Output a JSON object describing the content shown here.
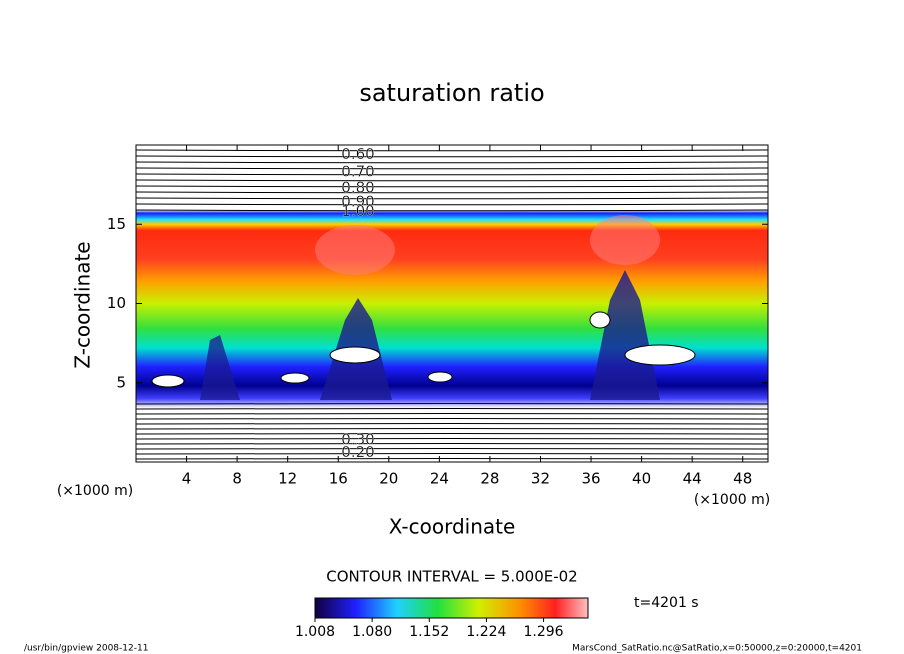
{
  "chart_data": {
    "type": "contour",
    "title": "saturation ratio",
    "xlabel": "X-coordinate",
    "ylabel": "Z-coordinate",
    "x_unit": "(×1000 m)",
    "y_unit": "(×1000 m)",
    "xlim": [
      0,
      50
    ],
    "ylim": [
      0,
      20
    ],
    "xticks": [
      4,
      8,
      12,
      16,
      20,
      24,
      28,
      32,
      36,
      40,
      44,
      48
    ],
    "yticks": [
      5,
      10,
      15
    ],
    "contour_labels": [
      {
        "value": 0.6,
        "label": "0.60",
        "z": 19.4
      },
      {
        "value": 0.7,
        "label": "0.70",
        "z": 18.3
      },
      {
        "value": 0.8,
        "label": "0.80",
        "z": 17.3
      },
      {
        "value": 0.9,
        "label": "0.90",
        "z": 16.4
      },
      {
        "value": 1.0,
        "label": "1.00",
        "z": 15.8
      },
      {
        "value": 0.3,
        "label": "0.30",
        "z": 1.4
      },
      {
        "value": 0.2,
        "label": "0.20",
        "z": 0.6
      }
    ],
    "contour_interval": "CONTOUR INTERVAL = 5.000E-02",
    "time_label": "t=4201 s",
    "colorbar_ticks": [
      1.008,
      {
        "value": 1.08,
        "label": "1.080"
      },
      1.152,
      1.224,
      1.296
    ],
    "colorbar_lim": [
      1.008,
      1.352
    ],
    "footer_left": "/usr/bin/gpview   2008-12-11",
    "footer_right": "MarsCond_SatRatio.nc@SatRatio,x=0:50000,z=0:20000,t=4201"
  }
}
